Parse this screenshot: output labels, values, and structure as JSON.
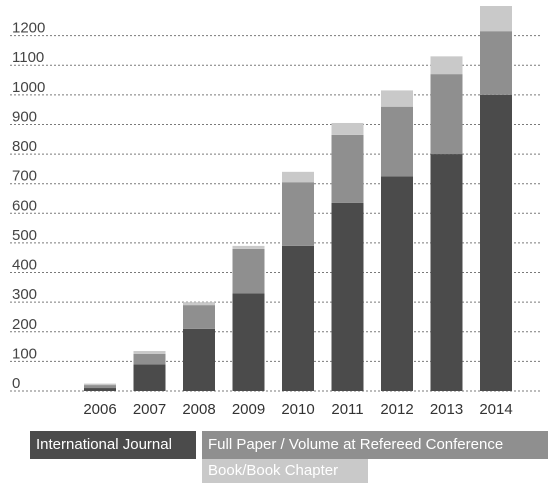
{
  "chart_data": {
    "type": "bar",
    "stacked": true,
    "categories": [
      "2006",
      "2007",
      "2008",
      "2009",
      "2010",
      "2011",
      "2012",
      "2013",
      "2014"
    ],
    "series": [
      {
        "name": "International Journal",
        "color": "#4b4b4b",
        "values": [
          10,
          90,
          210,
          330,
          490,
          635,
          725,
          800,
          1000
        ]
      },
      {
        "name": "Full Paper / Volume at Refereed Conference",
        "color": "#8f8f8f",
        "values": [
          10,
          35,
          80,
          150,
          215,
          230,
          235,
          270,
          215
        ]
      },
      {
        "name": "Book/Book Chapter",
        "color": "#c9c9c9",
        "values": [
          5,
          10,
          10,
          10,
          35,
          40,
          55,
          60,
          85
        ]
      }
    ],
    "y_ticks": [
      "0",
      "100",
      "200",
      "300",
      "400",
      "500",
      "600",
      "700",
      "800",
      "900",
      "1000",
      "1100",
      "1200"
    ],
    "ylim": [
      0,
      1300
    ],
    "grid": true,
    "legend_position": "bottom"
  }
}
